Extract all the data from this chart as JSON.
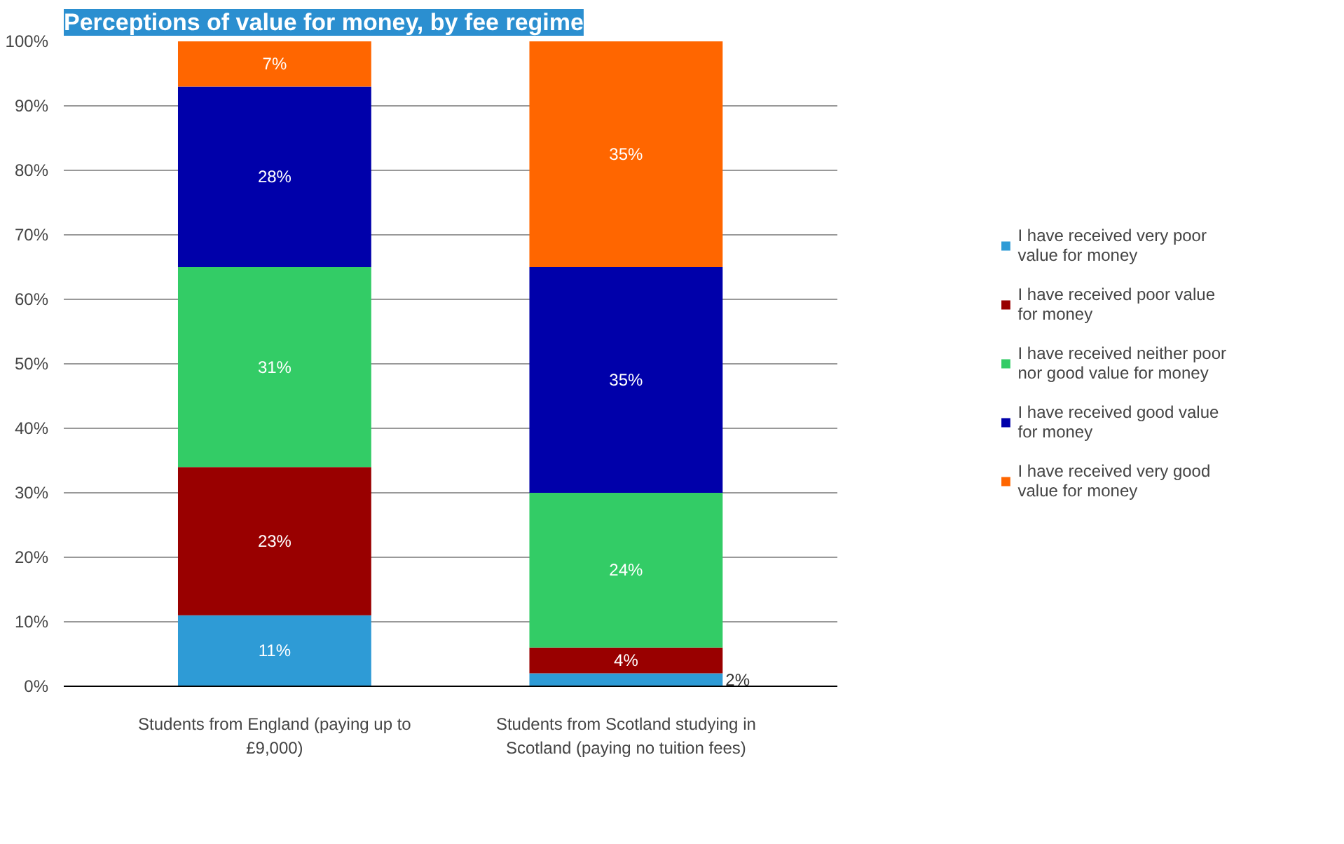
{
  "chart_data": {
    "type": "bar",
    "title": "Perceptions of value for money, by fee regime",
    "stacked": true,
    "categories": [
      "Students from England (paying up to £9,000)",
      "Students from Scotland studying in Scotland (paying no tuition fees)"
    ],
    "series": [
      {
        "name": "I have received very poor value for money",
        "color": "#2e9bd6",
        "values": [
          11,
          2
        ],
        "value_labels": [
          "11%",
          "2%"
        ]
      },
      {
        "name": "I have received poor value for money",
        "color": "#990000",
        "values": [
          23,
          4
        ],
        "value_labels": [
          "23%",
          "4%"
        ]
      },
      {
        "name": "I have received neither poor nor good value for money",
        "color": "#33cc66",
        "values": [
          31,
          24
        ],
        "value_labels": [
          "31%",
          "24%"
        ]
      },
      {
        "name": "I have received good value for money",
        "color": "#0000aa",
        "values": [
          28,
          35
        ],
        "value_labels": [
          "28%",
          "35%"
        ]
      },
      {
        "name": "I have received very good value for money",
        "color": "#ff6600",
        "values": [
          7,
          35
        ],
        "value_labels": [
          "7%",
          "35%"
        ]
      }
    ],
    "ylim": [
      0,
      100
    ],
    "yticks": [
      {
        "value": 0,
        "label": "0%"
      },
      {
        "value": 10,
        "label": "10%"
      },
      {
        "value": 20,
        "label": "20%"
      },
      {
        "value": 30,
        "label": "30%"
      },
      {
        "value": 40,
        "label": "40%"
      },
      {
        "value": 50,
        "label": "50%"
      },
      {
        "value": 60,
        "label": "60%"
      },
      {
        "value": 70,
        "label": "70%"
      },
      {
        "value": 80,
        "label": "80%"
      },
      {
        "value": 90,
        "label": "90%"
      },
      {
        "value": 100,
        "label": "100%"
      }
    ],
    "grid": "y",
    "legend": "right"
  }
}
